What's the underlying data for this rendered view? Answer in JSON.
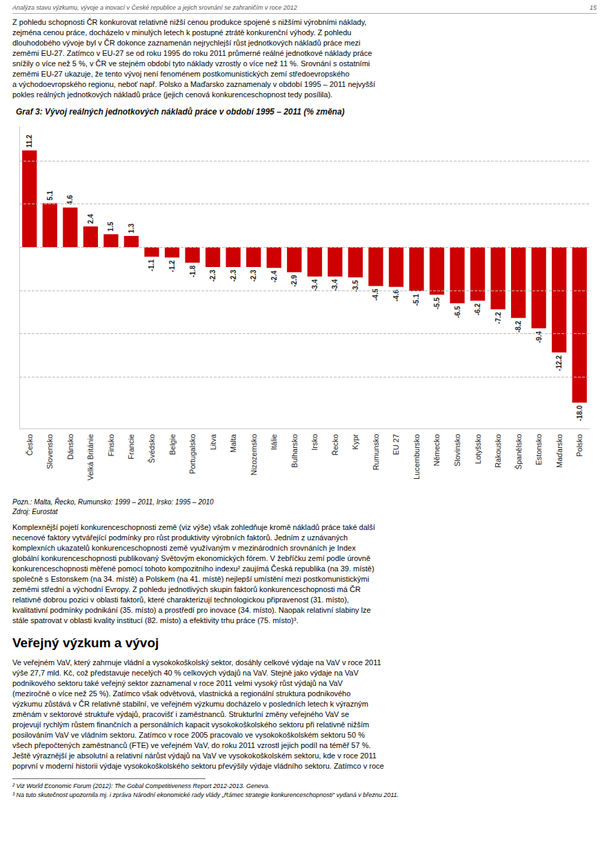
{
  "chart_data": {
    "type": "bar",
    "title": "Graf 3: Vývoj reálných jednotkových nákladů práce v období 1995 – 2011 (% změna)",
    "categories": [
      "Česko",
      "Slovensko",
      "Dánsko",
      "Velká Británie",
      "Finsko",
      "Francie",
      "Švédsko",
      "Belgie",
      "Portugalsko",
      "Litva",
      "Malta",
      "Nizozemsko",
      "Itálie",
      "Bulharsko",
      "Irsko",
      "Řecko",
      "Kypr",
      "Rumunsko",
      "EU 27",
      "Lucembursko",
      "Německo",
      "Slovinsko",
      "Lotyšsko",
      "Rakousko",
      "Španělsko",
      "Estonsko",
      "Maďarsko",
      "Polsko"
    ],
    "values": [
      11.2,
      5.1,
      4.6,
      2.4,
      1.5,
      1.3,
      -1.1,
      -1.2,
      -1.8,
      -2.3,
      -2.3,
      -2.3,
      -2.4,
      -2.9,
      -3.4,
      -3.4,
      -3.5,
      -4.5,
      -4.6,
      -5.1,
      -5.5,
      -6.5,
      -6.2,
      -7.2,
      -8.2,
      -9.4,
      -12.2,
      -18.0
    ],
    "value_labels": [
      "11.2",
      "5.1",
      "4.6",
      "2.4",
      "1.5",
      "1.3",
      "-1.1",
      "-1.2",
      "-1.8",
      "-2.3",
      "-2.3",
      "-2.3",
      "-2.4",
      "-2.9",
      "-3.4",
      "-3.4",
      "-3.5",
      "-4.5",
      "-4.6",
      "-5.1",
      "-5.5",
      "-6.5",
      "-6.2",
      "-7.2",
      "-8.2",
      "-9.4",
      "-12.2",
      "-18.0"
    ],
    "color": "#cc0000",
    "ylim": [
      -21,
      14
    ],
    "yticks": [
      -15,
      -10,
      -5,
      0,
      5,
      10
    ],
    "grid": true,
    "data_labels": true,
    "tick_labels": "x",
    "annotations": [
      "Analýza stavu výzkumu, vývoje a inovací v České republice a jejich srovnání se zahraničím v roce 2012",
      "15",
      "Z pohledu schopnosti ČR konkurovat relativně nižší cenou produkce spojené s nižšími výrobními náklady,",
      "zejména cenou práce, docházelo v minulých letech k postupné ztrátě konkurenční výhody. Z pohledu",
      "dlouhodobého vývoje byl v ČR dokonce zaznamenán nejrychlejší růst jednotkových nákladů práce mezi",
      "zeměmi EU-27. Zatímco v EU-27 se od roku 1995 do roku 2011 průmerné reálné jednotkové náklady práce",
      "snížily o více než 5 %, v ČR ve stejném období tyto náklady vzrostly o více než 11 %. Srovnání s ostatními",
      "zeměmi EU-27 ukazuje, že tento vývoj není fenoménem postkomunistických zemí středoevropského",
      "a východoevropského regionu, neboť např. Polsko a Maďarsko zaznamenaly v období 1995 – 2011 nejvyšší",
      "pokles reálných jednotkových nákladů práce (jejich cenová konkurenceschopnost tedy posílila).",
      "Pozn.: Malta, Řecko, Rumunsko: 1999 – 2011, Irsko: 1995 – 2010",
      "Zdroj: Eurostat",
      "Komplexnější pojetí konkurenceschopnosti země (viz výše) však zohledňuje kromě nákladů práce také další",
      "necenové faktory vytvářející podmínky pro růst produktivity výrobních faktorů. Jedním z uznávaných",
      "komplexních ukazatelů konkurenceschopnosti země využívaným v mezinárodních srovnáních je Index",
      "globální konkurenceschopnosti publikovaný Světovým ekonomických fórem. V žebříčku zemí podle úrovně",
      "konkurenceschopnosti měřené pomocí tohoto kompozitního indexu² zaujímá Česká republika (na 39. místě)",
      "společně s Estonskem (na 34. místě) a Polskem (na 41. místě) nejlepší umístění mezi postkomunistickými",
      "zeměmi střední a východní Evropy. Z pohledu jednotlivých skupin faktorů konkurenceschopnosti má ČR",
      "relativně dobrou pozici v oblasti faktorů, které charakterizují technologickou připravenost (31. místo),",
      "kvalitativní podmínky podnikání (35. místo) a prostředí pro inovace (34. místo). Naopak relativní slabiny lze",
      "stále spatrovat v oblasti kvality institucí (82. místo) a efektivity trhu práce (75. místo)³.",
      "Veřejný výzkum a vývoj",
      "Ve veřejném VaV, který zahrnuje vládní a vysokokoškolský sektor, dosáhly celkové výdaje na VaV v roce 2011",
      "výše 27,7 mld. Kč, což představuje necelých 40 % celkových výdajů na VaV.  Stejně jako výdaje na VaV",
      "podnikového sektoru také veřejný sektor zaznamenal v roce 2011 velmi vysoký růst výdajů na VaV",
      "(meziročně o více než 25 %). Zatímco však odvětvová, vlastnická a regionální struktura podnikového",
      "výzkumu zůstává v ČR relativně stabilní, ve veřejném výzkumu docházelo v posledních letech k výrazným",
      "změnám v sektorové struktuře výdajů, pracovišť i zaměstnanců. Strukturlní změny veřejného VaV se",
      "projevují rychlým růstem finančních a personálních kapacit vysokokoškolského sektoru při relativně nižším",
      "posilováním VaV ve vládním sektoru. Zatímco v roce 2005 pracovalo ve vysokokoškolském sektoru 50 %",
      "všech přepočtených zaměstnanců (FTE) ve veřejném VaV, do roku 2011 vzrostl jejich podíl na téměř 57 %.",
      "Ještě výraznější je absolutní a relativní nárůst výdajů na VaV ve vysokokoškolském sektoru, kde v roce 2011",
      "poprvní v moderní historii výdaje vysokokoškolského sektoru převýšily výdaje vládního sektoru. Zatímco v roce",
      "² Viz World Economic Forum (2012): The Gobal Competitiveness Report 2012-2013. Geneva.",
      "³ Na tuto skutečnost upozornila mj. i zpráva Národní ekonomické rady vlády „Rámec strategie konkurenceschopnosti“ vydaná v březnu 2011."
    ]
  }
}
